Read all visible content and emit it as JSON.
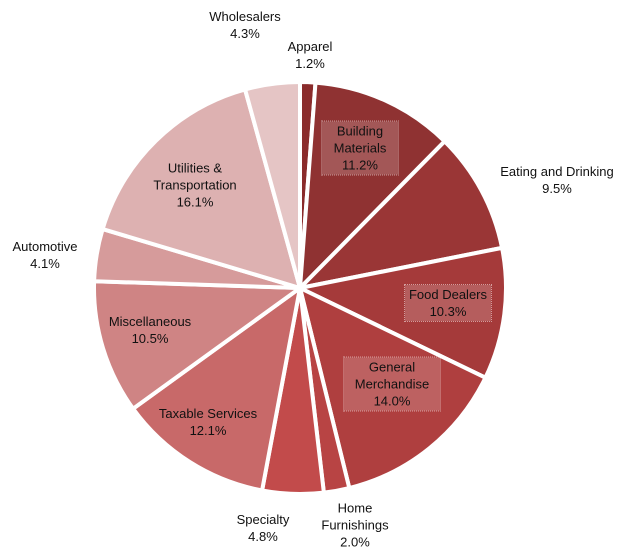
{
  "chart_data": {
    "type": "pie",
    "categories": [
      "Apparel",
      "Building Materials",
      "Eating and Drinking",
      "Food Dealers",
      "General Merchandise",
      "Home Furnishings",
      "Specialty",
      "Taxable Services",
      "Miscellaneous",
      "Automotive",
      "Utilities & Transportation",
      "Wholesalers"
    ],
    "values": [
      1.2,
      11.2,
      9.5,
      10.3,
      14.0,
      2.0,
      4.8,
      12.1,
      10.5,
      4.1,
      16.1,
      4.3
    ],
    "value_labels": [
      "1.2%",
      "11.2%",
      "9.5%",
      "10.3%",
      "14.0%",
      "2.0%",
      "4.8%",
      "12.1%",
      "10.5%",
      "4.1%",
      "16.1%",
      "4.3%"
    ],
    "colors": [
      "#8a2b2b",
      "#8f3232",
      "#9a3636",
      "#a53a3a",
      "#af3f3f",
      "#b84444",
      "#c24b4b",
      "#c86969",
      "#cf8484",
      "#d69b9b",
      "#ddb1b1",
      "#e5c5c5"
    ]
  }
}
